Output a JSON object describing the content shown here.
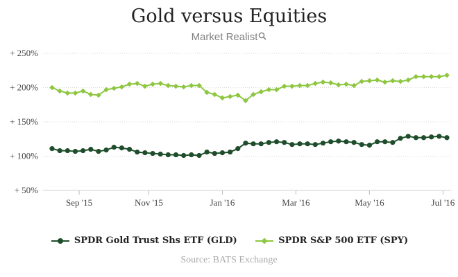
{
  "chart_data": {
    "type": "line",
    "title": "Gold versus Equities",
    "brand": "Market Realist",
    "source": "Source: BATS Exchange",
    "ytick_labels": [
      "+ 50%",
      "+ 100%",
      "+ 150%",
      "+ 200%",
      "+ 250%"
    ],
    "yticks": [
      50,
      100,
      150,
      200,
      250
    ],
    "ylim": [
      50,
      250
    ],
    "xtick_labels": [
      "Sep '15",
      "Nov '15",
      "Jan '16",
      "Mar '16",
      "May '16",
      "Jul '16"
    ],
    "xtick_index": [
      3.5,
      12.5,
      22,
      31.5,
      41,
      50.5
    ],
    "grid": true,
    "legend": "bottom",
    "series": [
      {
        "name": "SPDR Gold Trust Shs ETF (GLD)",
        "color": "#1e4d2b",
        "marker": "circle",
        "values": [
          111,
          108,
          108,
          107,
          108,
          110,
          107,
          109,
          113,
          112,
          110,
          106,
          105,
          104,
          103,
          102,
          102,
          101,
          102,
          101,
          106,
          104,
          105,
          106,
          111,
          119,
          118,
          118,
          120,
          121,
          120,
          117,
          118,
          118,
          117,
          119,
          121,
          122,
          121,
          120,
          117,
          116,
          121,
          121,
          120,
          126,
          129,
          127,
          127,
          128,
          129,
          127
        ]
      },
      {
        "name": "SPDR S&P 500 ETF (SPY)",
        "color": "#8dc63f",
        "marker": "diamond",
        "values": [
          200,
          195,
          192,
          192,
          195,
          190,
          189,
          197,
          199,
          201,
          205,
          206,
          202,
          205,
          206,
          203,
          202,
          201,
          203,
          203,
          193,
          190,
          185,
          187,
          189,
          181,
          190,
          194,
          197,
          197,
          202,
          202,
          203,
          203,
          206,
          208,
          207,
          204,
          205,
          203,
          209,
          210,
          211,
          208,
          210,
          209,
          211,
          216,
          216,
          216,
          216,
          218
        ]
      }
    ]
  }
}
